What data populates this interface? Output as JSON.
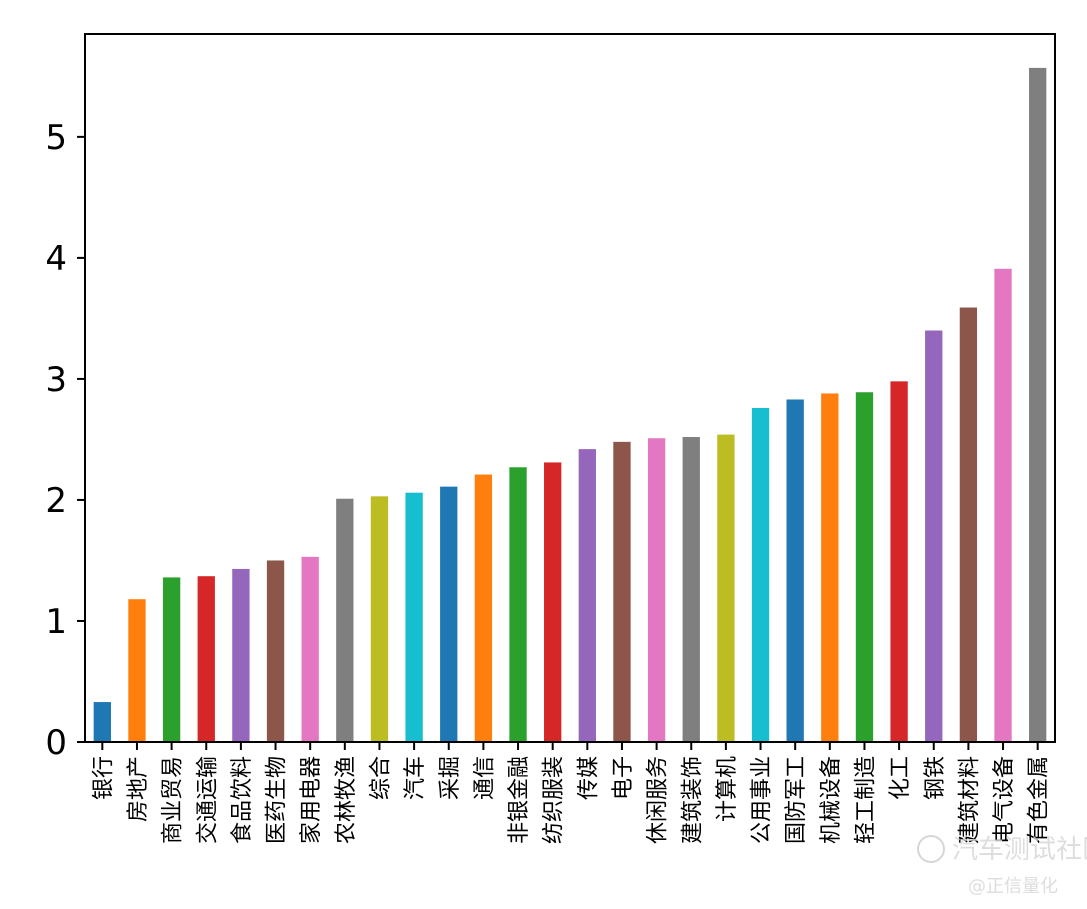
{
  "chart_data": {
    "type": "bar",
    "title": "",
    "xlabel": "",
    "ylabel": "",
    "ylim": [
      0,
      5.85
    ],
    "yticks": [
      0,
      1,
      2,
      3,
      4,
      5
    ],
    "grid": false,
    "categories": [
      "银行",
      "房地产",
      "商业贸易",
      "交通运输",
      "食品饮料",
      "医药生物",
      "家用电器",
      "农林牧渔",
      "综合",
      "汽车",
      "采掘",
      "通信",
      "非银金融",
      "纺织服装",
      "传媒",
      "电子",
      "休闲服务",
      "建筑装饰",
      "计算机",
      "公用事业",
      "国防军工",
      "机械设备",
      "轻工制造",
      "化工",
      "钢铁",
      "建筑材料",
      "电气设备",
      "有色金属"
    ],
    "values": [
      0.33,
      1.18,
      1.36,
      1.37,
      1.43,
      1.5,
      1.53,
      2.01,
      2.03,
      2.06,
      2.11,
      2.21,
      2.27,
      2.31,
      2.42,
      2.48,
      2.51,
      2.52,
      2.54,
      2.76,
      2.83,
      2.88,
      2.89,
      2.98,
      3.4,
      3.59,
      3.91,
      5.57
    ],
    "colors": [
      "#1f77b4",
      "#ff7f0e",
      "#2ca02c",
      "#d62728",
      "#9467bd",
      "#8c564b",
      "#e377c2",
      "#7f7f7f",
      "#bcbd22",
      "#17becf"
    ]
  },
  "watermark": {
    "text": "汽车测试社区",
    "subtext": "@正信量化"
  }
}
